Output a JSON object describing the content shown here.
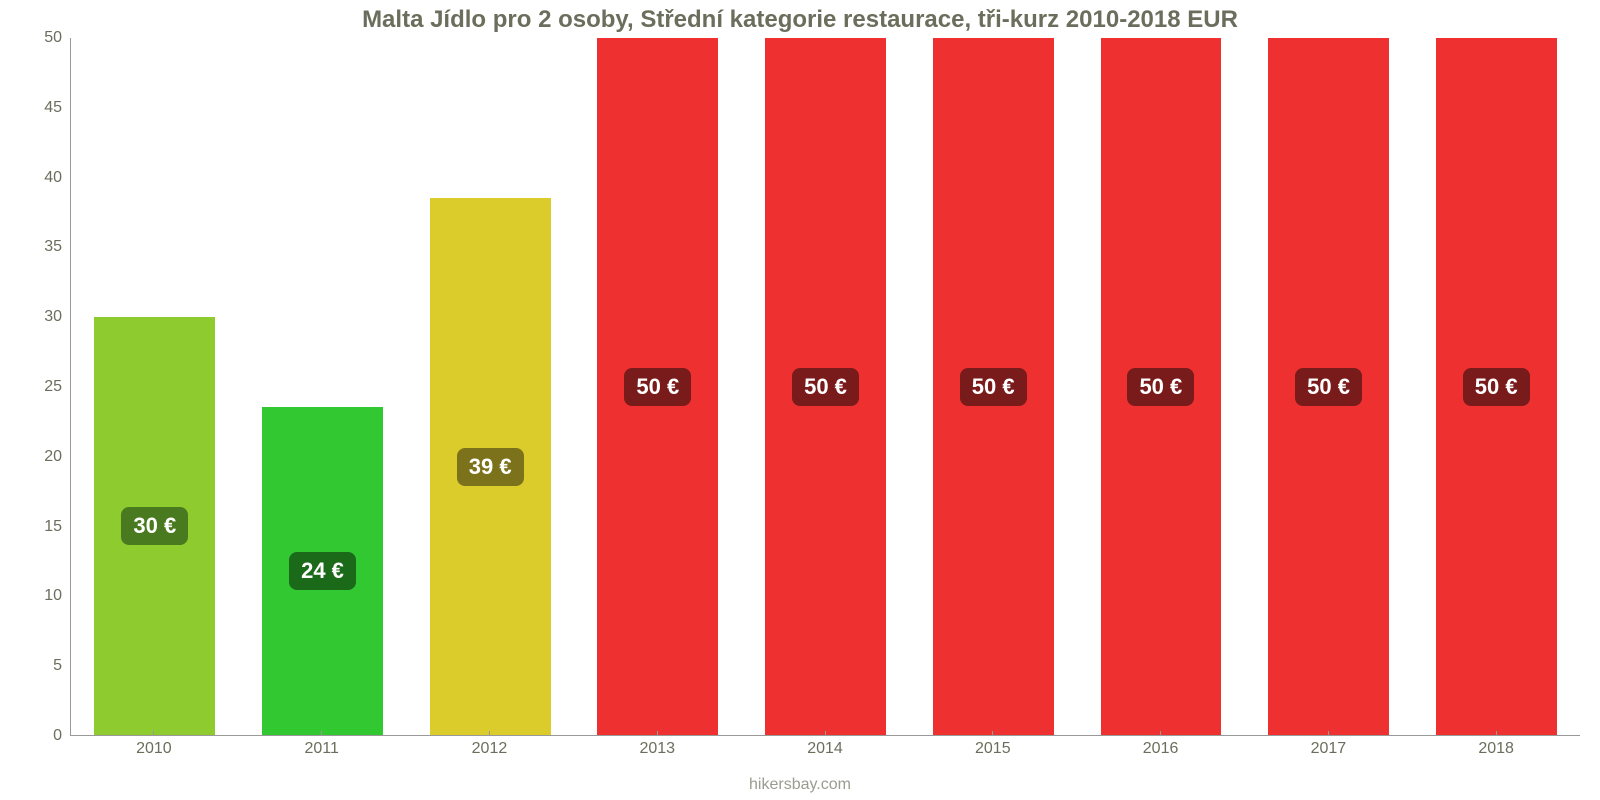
{
  "chart": {
    "type": "bar",
    "title": "Malta Jídlo pro 2 osoby, Střední kategorie restaurace, tři-kurz 2010-2018 EUR",
    "title_fontsize": 24,
    "title_color": "#6b6e5c",
    "attribution": "hikersbay.com",
    "attribution_color": "#9a9c8f",
    "background_color": "#ffffff",
    "y_axis": {
      "min": 0,
      "max": 50,
      "tick_step": 5,
      "ticks": [
        0,
        5,
        10,
        15,
        20,
        25,
        30,
        35,
        40,
        45,
        50
      ],
      "label_color": "#6b6e5c",
      "label_fontsize": 16
    },
    "x_axis": {
      "label_color": "#6b6e5c",
      "label_fontsize": 16
    },
    "axis_line_color": "#999999",
    "bar_width_ratio": 0.72,
    "bar_label_fontsize": 22,
    "bar_label_text_color": "#ffffff",
    "bar_label_radius": 8,
    "bars": [
      {
        "year": "2010",
        "value": 30,
        "label": "30 €",
        "color": "#8dcb2f",
        "label_bg": "#4a7a1f"
      },
      {
        "year": "2011",
        "value": 23.5,
        "label": "24 €",
        "color": "#31c831",
        "label_bg": "#1a6a1a"
      },
      {
        "year": "2012",
        "value": 38.5,
        "label": "39 €",
        "color": "#dbcc2c",
        "label_bg": "#7d721c"
      },
      {
        "year": "2013",
        "value": 50,
        "label": "50 €",
        "color": "#ee3030",
        "label_bg": "#7a1b1b"
      },
      {
        "year": "2014",
        "value": 50,
        "label": "50 €",
        "color": "#ee3030",
        "label_bg": "#7a1b1b"
      },
      {
        "year": "2015",
        "value": 50,
        "label": "50 €",
        "color": "#ee3030",
        "label_bg": "#7a1b1b"
      },
      {
        "year": "2016",
        "value": 50,
        "label": "50 €",
        "color": "#ee3030",
        "label_bg": "#7a1b1b"
      },
      {
        "year": "2017",
        "value": 50,
        "label": "50 €",
        "color": "#ee3030",
        "label_bg": "#7a1b1b"
      },
      {
        "year": "2018",
        "value": 50,
        "label": "50 €",
        "color": "#ee3030",
        "label_bg": "#7a1b1b"
      }
    ]
  }
}
